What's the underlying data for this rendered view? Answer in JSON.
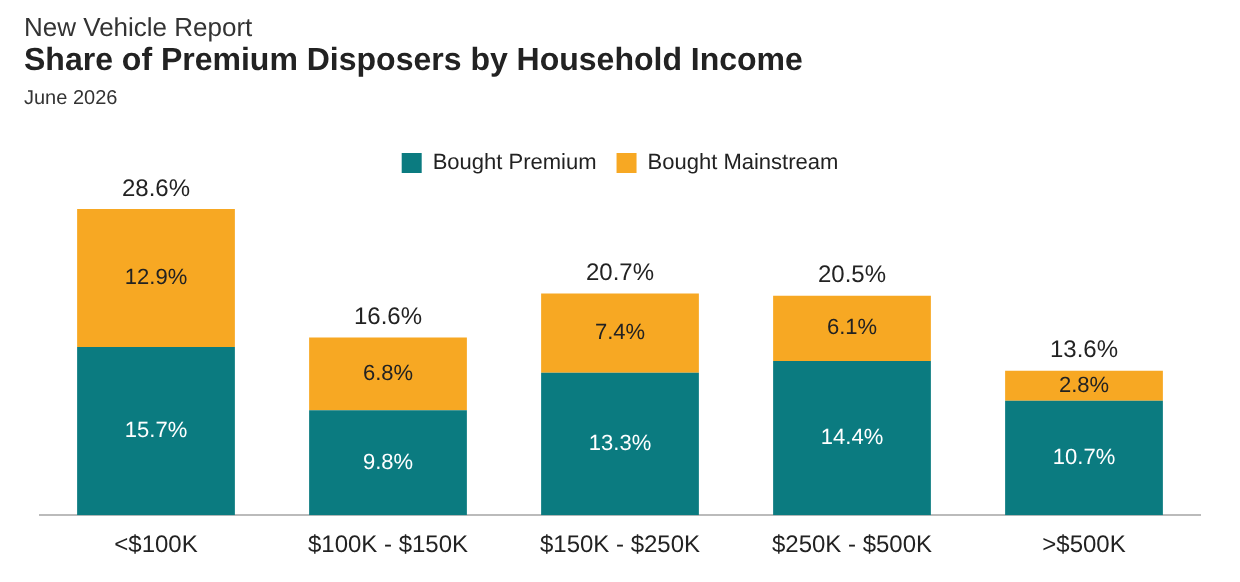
{
  "chart_data": {
    "type": "bar",
    "title": "Share of Premium Disposers by Household Income",
    "subtitle": "New Vehicle Report",
    "annotations": [
      "June 2026"
    ],
    "categories": [
      "<$100K",
      "$100K - $150K",
      "$150K - $250K",
      "$250K - $500K",
      ">$500K"
    ],
    "stacked": true,
    "series": [
      {
        "name": "Bought Premium",
        "color": "#0b7b80",
        "values": [
          15.7,
          9.8,
          13.3,
          14.4,
          10.7
        ],
        "value_labels": [
          "15.7%",
          "9.8%",
          "13.3%",
          "14.4%",
          "10.7%"
        ]
      },
      {
        "name": "Bought Mainstream",
        "color": "#f7a823",
        "values": [
          12.9,
          6.8,
          7.4,
          6.1,
          2.8
        ],
        "value_labels": [
          "12.9%",
          "6.8%",
          "7.4%",
          "6.1%",
          "2.8%"
        ]
      }
    ],
    "totals": [
      "28.6%",
      "16.6%",
      "20.7%",
      "20.5%",
      "13.6%"
    ],
    "legend": "top",
    "grid": false
  }
}
